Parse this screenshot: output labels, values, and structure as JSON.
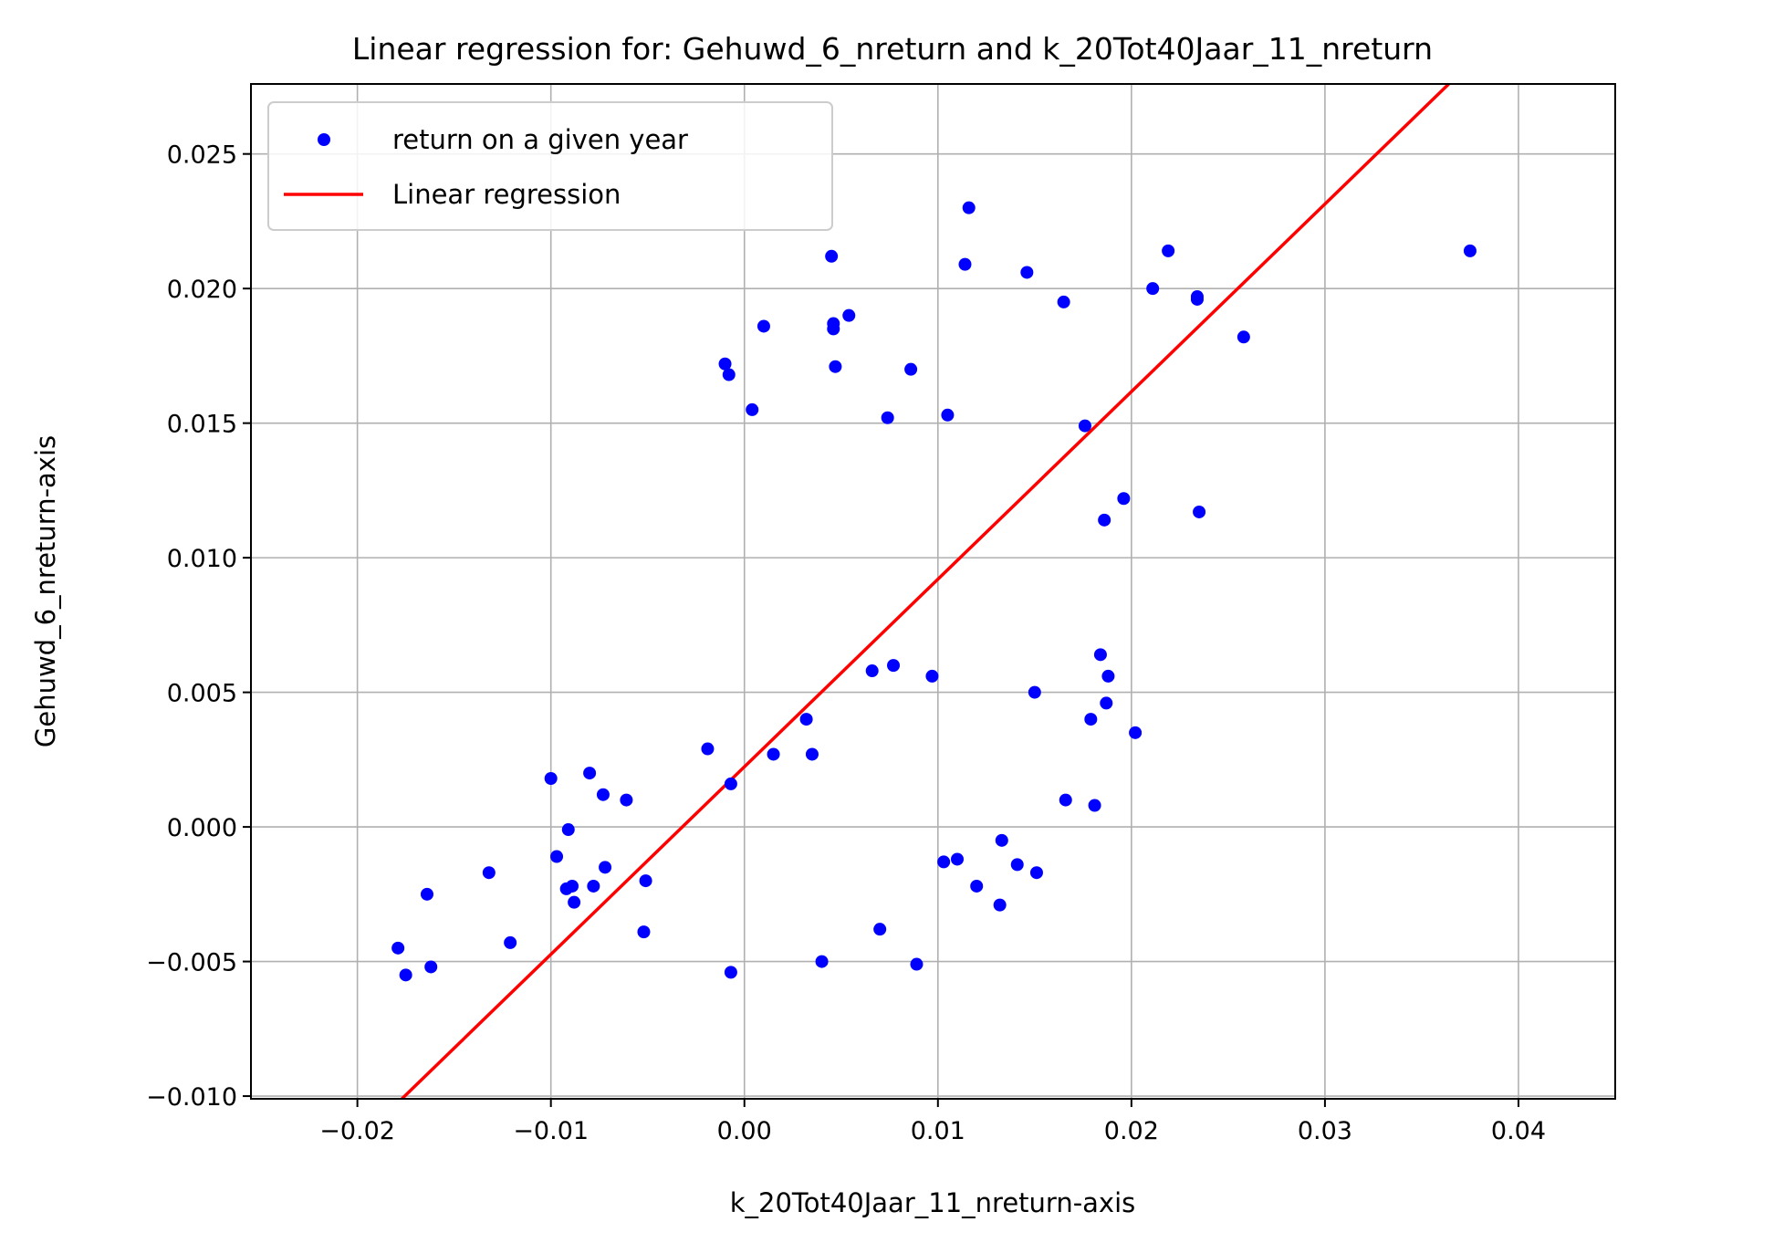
{
  "chart_data": {
    "type": "scatter",
    "title": "Linear regression for: Gehuwd_6_nreturn and k_20Tot40Jaar_11_nreturn",
    "xlabel": "k_20Tot40Jaar_11_nreturn-axis",
    "ylabel": "Gehuwd_6_nreturn-axis",
    "xlim": [
      -0.0255,
      0.045
    ],
    "ylim": [
      -0.0101,
      0.0276
    ],
    "grid": true,
    "legend_position": "top-left",
    "x_ticks": [
      -0.02,
      -0.01,
      0.0,
      0.01,
      0.02,
      0.03,
      0.04
    ],
    "x_tick_labels": [
      "−0.02",
      "−0.01",
      "0.00",
      "0.01",
      "0.02",
      "0.03",
      "0.04"
    ],
    "y_ticks": [
      -0.01,
      -0.005,
      0.0,
      0.005,
      0.01,
      0.015,
      0.02,
      0.025
    ],
    "y_tick_labels": [
      "−0.010",
      "−0.005",
      "0.000",
      "0.005",
      "0.010",
      "0.015",
      "0.020",
      "0.025"
    ],
    "series": [
      {
        "name": "return on a given year",
        "kind": "scatter",
        "color": "#0000ff",
        "points": [
          [
            -0.0179,
            -0.0045
          ],
          [
            -0.0175,
            -0.0055
          ],
          [
            -0.0164,
            -0.0025
          ],
          [
            -0.0162,
            -0.0052
          ],
          [
            -0.0132,
            -0.0017
          ],
          [
            -0.0121,
            -0.0043
          ],
          [
            -0.01,
            0.0018
          ],
          [
            -0.0097,
            -0.0011
          ],
          [
            -0.0092,
            -0.0023
          ],
          [
            -0.0091,
            -0.0001
          ],
          [
            -0.0089,
            -0.0022
          ],
          [
            -0.0088,
            -0.0028
          ],
          [
            -0.008,
            0.002
          ],
          [
            -0.0078,
            -0.0022
          ],
          [
            -0.0073,
            0.0012
          ],
          [
            -0.0072,
            -0.0015
          ],
          [
            -0.0061,
            0.001
          ],
          [
            -0.0052,
            -0.0039
          ],
          [
            -0.0051,
            -0.002
          ],
          [
            -0.0019,
            0.0029
          ],
          [
            -0.001,
            0.0172
          ],
          [
            -0.0008,
            0.0168
          ],
          [
            -0.0007,
            0.0016
          ],
          [
            -0.0007,
            -0.0054
          ],
          [
            0.0004,
            0.0155
          ],
          [
            0.001,
            0.0186
          ],
          [
            0.0015,
            0.0027
          ],
          [
            0.0032,
            0.004
          ],
          [
            0.0035,
            0.0027
          ],
          [
            0.004,
            -0.005
          ],
          [
            0.0045,
            0.0212
          ],
          [
            0.0046,
            0.0187
          ],
          [
            0.0046,
            0.0185
          ],
          [
            0.0047,
            0.0171
          ],
          [
            0.0054,
            0.019
          ],
          [
            0.0066,
            0.0058
          ],
          [
            0.007,
            -0.0038
          ],
          [
            0.0074,
            0.0152
          ],
          [
            0.0077,
            0.006
          ],
          [
            0.0086,
            0.017
          ],
          [
            0.0089,
            -0.0051
          ],
          [
            0.0097,
            0.0056
          ],
          [
            0.0103,
            -0.0013
          ],
          [
            0.0105,
            0.0153
          ],
          [
            0.011,
            -0.0012
          ],
          [
            0.0114,
            0.0209
          ],
          [
            0.0116,
            0.023
          ],
          [
            0.012,
            -0.0022
          ],
          [
            0.0132,
            -0.0029
          ],
          [
            0.0133,
            -0.0005
          ],
          [
            0.0141,
            -0.0014
          ],
          [
            0.0146,
            0.0206
          ],
          [
            0.015,
            0.005
          ],
          [
            0.0151,
            -0.0017
          ],
          [
            0.0165,
            0.0195
          ],
          [
            0.0166,
            0.001
          ],
          [
            0.0176,
            0.0149
          ],
          [
            0.0179,
            0.004
          ],
          [
            0.0181,
            0.0008
          ],
          [
            0.0184,
            0.0064
          ],
          [
            0.0186,
            0.0114
          ],
          [
            0.0187,
            0.0046
          ],
          [
            0.0188,
            0.0056
          ],
          [
            0.0196,
            0.0122
          ],
          [
            0.0202,
            0.0035
          ],
          [
            0.0211,
            0.02
          ],
          [
            0.0219,
            0.0214
          ],
          [
            0.0234,
            0.0197
          ],
          [
            0.0234,
            0.0196
          ],
          [
            0.0235,
            0.0117
          ],
          [
            0.0258,
            0.0182
          ],
          [
            0.0375,
            0.0214
          ]
        ]
      },
      {
        "name": "Linear regression",
        "kind": "line",
        "color": "#ff0000",
        "points": [
          [
            -0.0177,
            -0.0101
          ],
          [
            0.0364,
            0.0276
          ]
        ]
      }
    ]
  }
}
